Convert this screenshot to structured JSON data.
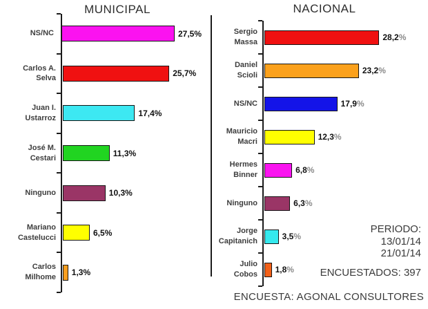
{
  "chart_data": [
    {
      "type": "bar",
      "orientation": "horizontal",
      "title": "MUNICIPAL",
      "xlim": [
        0,
        30
      ],
      "grid": false,
      "legend": false,
      "categories": [
        "NS/NC",
        "Carlos A. Selva",
        "Juan I. Ustarroz",
        "José M. Cestari",
        "Ninguno",
        "Mariano Castelucci",
        "Carlos Milhome"
      ],
      "category_lines": [
        [
          "NS/NC"
        ],
        [
          "Carlos A.",
          "Selva"
        ],
        [
          "Juan I.",
          "Ustarroz"
        ],
        [
          "José M.",
          "Cestari"
        ],
        [
          "Ninguno"
        ],
        [
          "Mariano",
          "Castelucci"
        ],
        [
          "Carlos",
          "Milhome"
        ]
      ],
      "values": [
        27.5,
        25.7,
        17.4,
        11.3,
        10.3,
        6.5,
        1.3
      ],
      "value_labels": [
        "27,5%",
        "25,7%",
        "17,4%",
        "11,3%",
        "10,3%",
        "6,5%",
        "1,3%"
      ],
      "colors": [
        "#FB12F0",
        "#F01111",
        "#3DE8F2",
        "#21D421",
        "#9A3566",
        "#FFFF00",
        "#FB9E1E"
      ]
    },
    {
      "type": "bar",
      "orientation": "horizontal",
      "title": "NACIONAL",
      "xlim": [
        0,
        30
      ],
      "grid": false,
      "legend": false,
      "categories": [
        "Sergio Massa",
        "Daniel Scioli",
        "NS/NC",
        "Mauricio Macri",
        "Hermes Binner",
        "Ninguno",
        "Jorge Capitanich",
        "Julio Cobos"
      ],
      "category_lines": [
        [
          "Sergio",
          "Massa"
        ],
        [
          "Daniel",
          "Scioli"
        ],
        [
          "NS/NC"
        ],
        [
          "Mauricio",
          "Macri"
        ],
        [
          "Hermes",
          "Binner"
        ],
        [
          "Ninguno"
        ],
        [
          "Jorge",
          "Capitanich"
        ],
        [
          "Julio",
          "Cobos"
        ]
      ],
      "values": [
        28.2,
        23.2,
        17.9,
        12.3,
        6.8,
        6.3,
        3.5,
        1.8
      ],
      "value_labels": [
        "28,2%",
        "23,2%",
        "17,9%",
        "12,3%",
        "6,8%",
        "6,3%",
        "3,5%",
        "1,8%"
      ],
      "colors": [
        "#F01111",
        "#FBA11C",
        "#1414E8",
        "#FFFF00",
        "#FA14F0",
        "#9A3566",
        "#35E9EE",
        "#F26018"
      ]
    }
  ],
  "footer": {
    "periodo_label": "PERIODO:",
    "periodo_date_1": "13/01/14",
    "periodo_date_2": "21/01/14",
    "encuestados": "ENCUESTADOS: 397",
    "encuesta": "ENCUESTA: AGONAL CONSULTORES"
  }
}
